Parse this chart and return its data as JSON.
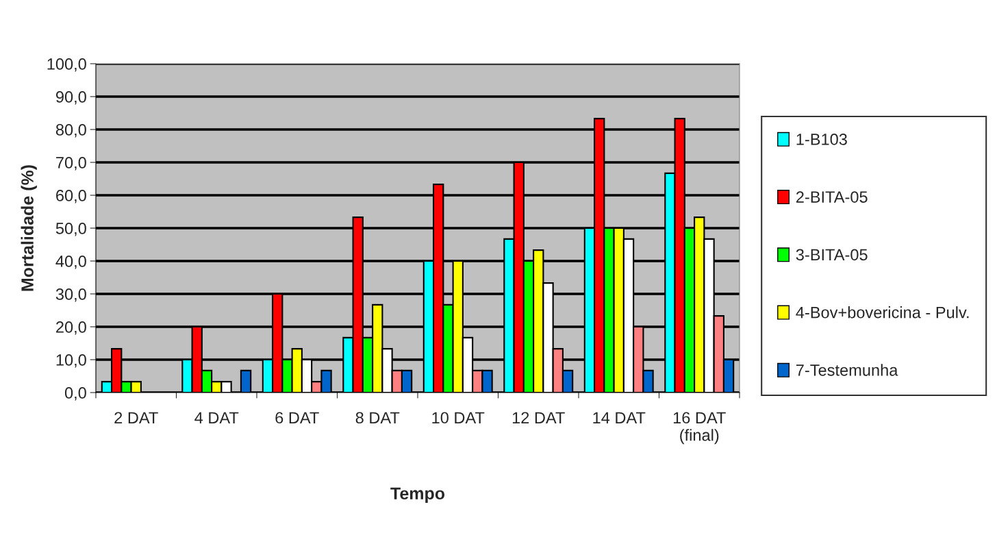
{
  "chart_data": {
    "type": "bar",
    "xlabel": "Tempo",
    "ylabel": "Mortalidade (%)",
    "categories": [
      "2 DAT",
      "4 DAT",
      "6 DAT",
      "8 DAT",
      "10 DAT",
      "12 DAT",
      "14 DAT",
      "16 DAT\n(final)"
    ],
    "series": [
      {
        "name": "1-B103",
        "color": "#00ffff",
        "values": [
          3.3,
          10,
          10,
          16.7,
          40,
          46.7,
          50,
          66.7
        ]
      },
      {
        "name": "2-BITA-05",
        "color": "#ff0000",
        "values": [
          13.3,
          20,
          30,
          53.3,
          63.3,
          70,
          83.3,
          83.3
        ]
      },
      {
        "name": "3-BITA-05",
        "color": "#00ff00",
        "values": [
          3.3,
          6.7,
          10,
          16.7,
          26.7,
          40,
          50,
          50
        ]
      },
      {
        "name": "4-Bov+bovericina - Pulv.",
        "color": "#ffff00",
        "values": [
          3.3,
          3.3,
          13.3,
          26.7,
          40,
          43.3,
          50,
          53.3
        ]
      },
      {
        "color": "#ffffff",
        "values": [
          null,
          3.3,
          10,
          13.3,
          16.7,
          33.3,
          46.7,
          46.7
        ]
      },
      {
        "color": "#ff8080",
        "values": [
          null,
          null,
          3.3,
          6.7,
          6.7,
          13.3,
          20,
          23.3
        ]
      },
      {
        "name": "7-Testemunha",
        "color": "#0066cc",
        "values": [
          null,
          6.7,
          6.7,
          6.7,
          6.7,
          6.7,
          6.7,
          10
        ]
      }
    ],
    "ylim": [
      0,
      100
    ],
    "yticks": [
      {
        "value": 0,
        "label": "0,0"
      },
      {
        "value": 10,
        "label": "10,0"
      },
      {
        "value": 20,
        "label": "20,0"
      },
      {
        "value": 30,
        "label": "30,0"
      },
      {
        "value": 40,
        "label": "40,0"
      },
      {
        "value": 50,
        "label": "50,0"
      },
      {
        "value": 60,
        "label": "60,0"
      },
      {
        "value": 70,
        "label": "70,0"
      },
      {
        "value": 80,
        "label": "80,0"
      },
      {
        "value": 90,
        "label": "90,0"
      },
      {
        "value": 100,
        "label": "100,0"
      }
    ],
    "grid": "y",
    "legend": "right"
  }
}
